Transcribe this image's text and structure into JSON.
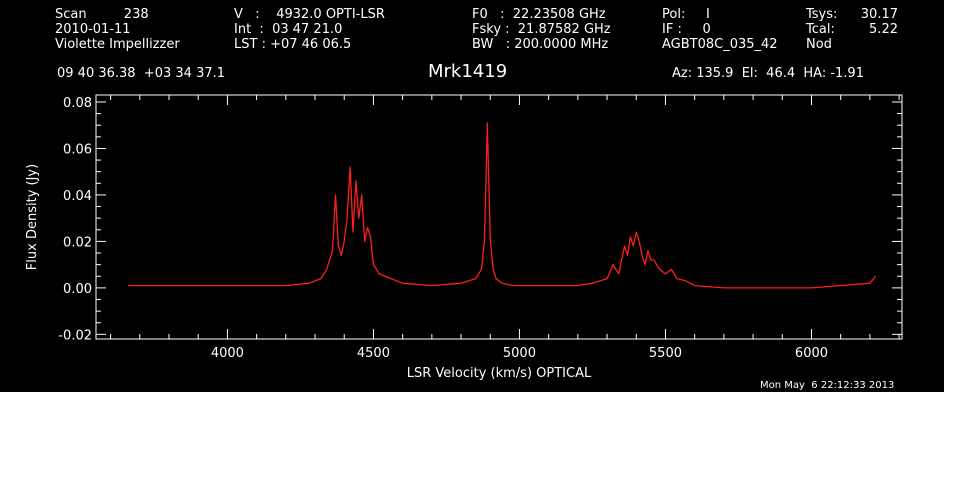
{
  "header": {
    "col1": [
      "Scan         238",
      "2010-01-11",
      "Violette Impellizzer"
    ],
    "col2": [
      "V   :    4932.0 OPTI-LSR",
      "Int  :  03 47 21.0",
      "LST : +07 46 06.5"
    ],
    "col3": [
      "F0   :  22.23508 GHz",
      "Fsky :  21.87582 GHz",
      "BW   : 200.0000 MHz"
    ],
    "col4": [
      "Pol:     I",
      "IF :     0",
      "AGBT08C_035_42"
    ],
    "col5a": [
      "Tsys:",
      "Tcal:",
      "Nod"
    ],
    "col5b": [
      "30.17",
      "5.22",
      ""
    ],
    "coords": "09 40 36.38  +03 34 37.1",
    "source": "Mrk1419",
    "azelha": "Az: 135.9  El:  46.4  HA: -1.91",
    "timestamp": "Mon May  6 22:12:33 2013"
  },
  "colors": {
    "background": "#000000",
    "axes": "#ffffff",
    "trace": "#ff1e1e"
  },
  "chart_data": {
    "type": "line",
    "xlabel": "LSR Velocity (km/s) OPTICAL",
    "ylabel": "Flux Density (Jy)",
    "xlim": [
      3550,
      6310
    ],
    "ylim": [
      -0.022,
      0.083
    ],
    "xticks": [
      4000,
      4500,
      5000,
      5500,
      6000
    ],
    "yticks": [
      -0.02,
      0.0,
      0.02,
      0.04,
      0.06,
      0.08
    ],
    "ytick_labels": [
      "-0.02",
      "0.00",
      "0.02",
      "0.04",
      "0.06",
      "0.08"
    ],
    "grid": false,
    "series": [
      {
        "x": [
          3660,
          3800,
          4000,
          4200,
          4280,
          4320,
          4340,
          4360,
          4370,
          4380,
          4390,
          4400,
          4410,
          4420,
          4430,
          4440,
          4450,
          4460,
          4470,
          4480,
          4490,
          4500,
          4520,
          4560,
          4600,
          4700,
          4800,
          4850,
          4870,
          4880,
          4885,
          4890,
          4895,
          4900,
          4905,
          4910,
          4920,
          4940,
          4980,
          5100,
          5200,
          5250,
          5300,
          5320,
          5340,
          5360,
          5370,
          5380,
          5390,
          5400,
          5410,
          5420,
          5430,
          5440,
          5450,
          5460,
          5480,
          5500,
          5520,
          5540,
          5570,
          5600,
          5700,
          5800,
          6000,
          6200,
          6220
        ],
        "y": [
          0.001,
          0.001,
          0.001,
          0.001,
          0.002,
          0.004,
          0.008,
          0.016,
          0.04,
          0.018,
          0.014,
          0.02,
          0.03,
          0.052,
          0.024,
          0.046,
          0.03,
          0.04,
          0.02,
          0.026,
          0.022,
          0.01,
          0.006,
          0.004,
          0.002,
          0.001,
          0.002,
          0.004,
          0.008,
          0.02,
          0.044,
          0.071,
          0.046,
          0.022,
          0.014,
          0.008,
          0.004,
          0.002,
          0.001,
          0.001,
          0.001,
          0.002,
          0.004,
          0.01,
          0.006,
          0.018,
          0.014,
          0.022,
          0.018,
          0.024,
          0.02,
          0.014,
          0.01,
          0.016,
          0.012,
          0.012,
          0.008,
          0.006,
          0.008,
          0.004,
          0.003,
          0.001,
          0.0,
          0.0,
          0.0,
          0.002,
          0.005
        ]
      }
    ]
  }
}
